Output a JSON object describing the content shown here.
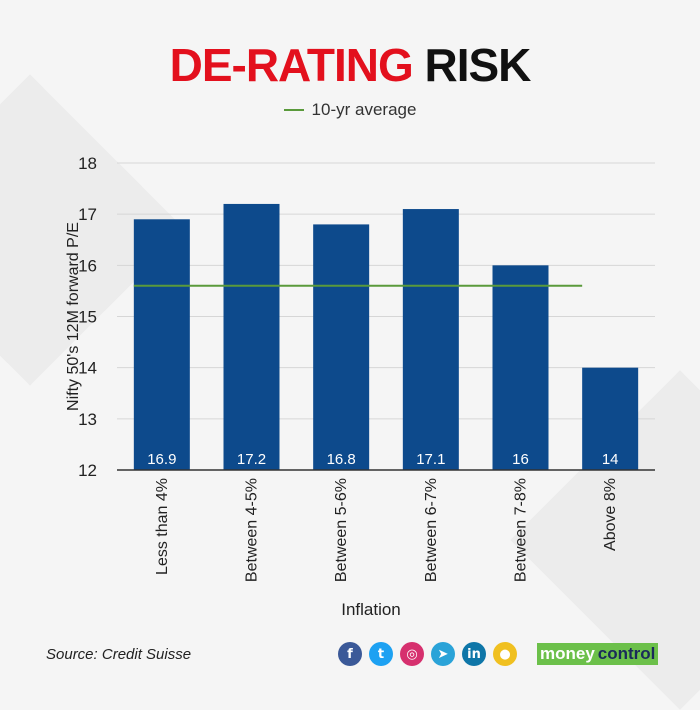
{
  "title": {
    "part1": "DE-RATING",
    "part2": "RISK"
  },
  "legend": {
    "label": "10-yr average"
  },
  "source": "Source: Credit Suisse",
  "social": [
    {
      "name": "facebook-icon",
      "glyph": "f",
      "color": "#3b5998"
    },
    {
      "name": "twitter-icon",
      "glyph": "t",
      "color": "#1da1f2"
    },
    {
      "name": "instagram-icon",
      "glyph": "◎",
      "color": "#d6306e"
    },
    {
      "name": "telegram-icon",
      "glyph": "➤",
      "color": "#2aa3d8"
    },
    {
      "name": "linkedin-icon",
      "glyph": "in",
      "color": "#0e76a8"
    },
    {
      "name": "koo-icon",
      "glyph": "●",
      "color": "#f0c020"
    }
  ],
  "brand": {
    "part1": "money",
    "part2": "control"
  },
  "colors": {
    "bar": "#0d4a8c",
    "average_line": "#5a9a3b",
    "grid": "#d6d6d6"
  },
  "chart_data": {
    "type": "bar",
    "title": "DE-RATING RISK",
    "categories": [
      "Less than 4%",
      "Between 4-5%",
      "Between 5-6%",
      "Between 6-7%",
      "Between 7-8%",
      "Above 8%"
    ],
    "values": [
      16.9,
      17.2,
      16.8,
      17.1,
      16,
      14
    ],
    "value_labels": [
      "16.9",
      "17.2",
      "16.8",
      "17.1",
      "16",
      "14"
    ],
    "average": {
      "name": "10-yr average",
      "value": 15.6
    },
    "xlabel": "Inflation",
    "ylabel": "Nifty 50's 12M forward P/E",
    "ylim": [
      12,
      18
    ],
    "yticks": [
      12,
      13,
      14,
      15,
      16,
      17,
      18
    ],
    "grid": true,
    "legend_position": "top-center"
  }
}
